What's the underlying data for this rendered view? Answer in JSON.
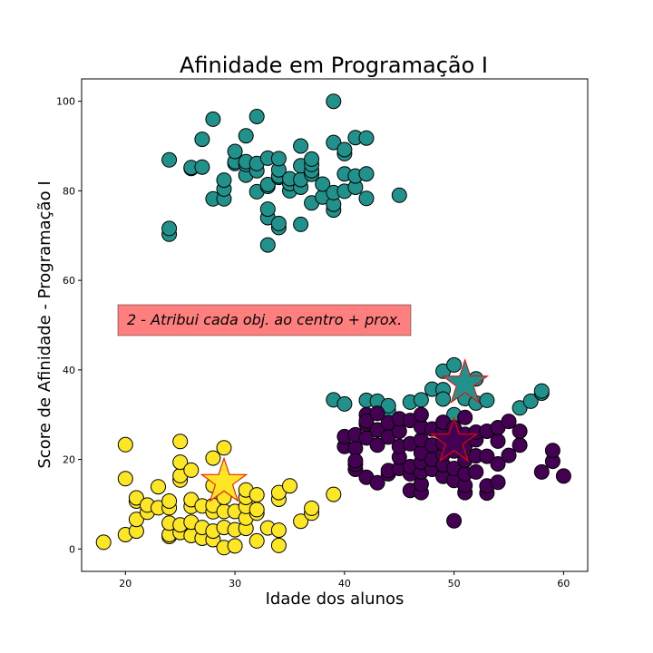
{
  "chart_data": {
    "type": "scatter",
    "title": "Afinidade em Programação I",
    "xlabel": "Idade dos alunos",
    "ylabel": "Score de Afinidade - Programação I",
    "xlim": [
      16,
      62.2
    ],
    "ylim": [
      -5,
      105
    ],
    "xticks": [
      20,
      30,
      40,
      50,
      60
    ],
    "yticks": [
      0,
      20,
      40,
      60,
      80,
      100
    ],
    "grid": false,
    "annotation": {
      "text": "2 - Atribui cada obj. ao centro + prox.",
      "background": "#ff7f7f",
      "x": 19.3,
      "y": 51
    },
    "colors": {
      "cluster_yellow": "#fde725",
      "cluster_teal": "#21918c",
      "cluster_purple": "#440154",
      "centroid_edge": "#ff0000",
      "point_edge": "#000000"
    },
    "series": [
      {
        "color": "#fde725",
        "points": [
          [
            18,
            1.5
          ],
          [
            20,
            3.2
          ],
          [
            20,
            15.7
          ],
          [
            20,
            23.3
          ],
          [
            21,
            4
          ],
          [
            21,
            6.6
          ],
          [
            21,
            10.7
          ],
          [
            21,
            11.4
          ],
          [
            22,
            8.2
          ],
          [
            22,
            9.8
          ],
          [
            23,
            9.2
          ],
          [
            23,
            13.9
          ],
          [
            24,
            2.8
          ],
          [
            24,
            3.2
          ],
          [
            24,
            5.8
          ],
          [
            24,
            9.2
          ],
          [
            24,
            10.7
          ],
          [
            25,
            3.7
          ],
          [
            25,
            5.4
          ],
          [
            25,
            15.4
          ],
          [
            25,
            16.4
          ],
          [
            25,
            19.4
          ],
          [
            25,
            24
          ],
          [
            26,
            3
          ],
          [
            26,
            6
          ],
          [
            26,
            9.5
          ],
          [
            26,
            11
          ],
          [
            26,
            17.6
          ],
          [
            27,
            2.4
          ],
          [
            27,
            4.8
          ],
          [
            27,
            9.6
          ],
          [
            28,
            2.1
          ],
          [
            28,
            4
          ],
          [
            28,
            8.3
          ],
          [
            28,
            9.7
          ],
          [
            28,
            14.2
          ],
          [
            28,
            20.3
          ],
          [
            29,
            0.3
          ],
          [
            29,
            4.8
          ],
          [
            29,
            8.4
          ],
          [
            29,
            11.5
          ],
          [
            29,
            22.6
          ],
          [
            30,
            0.7
          ],
          [
            30,
            4.3
          ],
          [
            30,
            8.4
          ],
          [
            31,
            4.6
          ],
          [
            31,
            6.9
          ],
          [
            31,
            9.5
          ],
          [
            31,
            11.5
          ],
          [
            31,
            13.2
          ],
          [
            32,
            1.8
          ],
          [
            32,
            8
          ],
          [
            32,
            8.8
          ],
          [
            32,
            12.1
          ],
          [
            33,
            4.7
          ],
          [
            34,
            0.8
          ],
          [
            34,
            4.2
          ],
          [
            34,
            11.1
          ],
          [
            34,
            12.6
          ],
          [
            35,
            14.1
          ],
          [
            36,
            6.2
          ],
          [
            37,
            8
          ],
          [
            37,
            9.1
          ],
          [
            39,
            12.2
          ]
        ]
      },
      {
        "color": "#21918c",
        "points": [
          [
            24,
            70.3
          ],
          [
            24,
            71.6
          ],
          [
            24,
            86.9
          ],
          [
            26,
            85
          ],
          [
            26,
            85.2
          ],
          [
            27,
            85.3
          ],
          [
            27,
            91.5
          ],
          [
            28,
            78.2
          ],
          [
            28,
            96
          ],
          [
            29,
            78.2
          ],
          [
            29,
            80.4
          ],
          [
            29,
            82.4
          ],
          [
            30,
            86.1
          ],
          [
            30,
            86.5
          ],
          [
            30,
            88.8
          ],
          [
            31,
            83.5
          ],
          [
            31,
            85.9
          ],
          [
            31,
            86.5
          ],
          [
            31,
            92.3
          ],
          [
            32,
            79.8
          ],
          [
            32,
            84.5
          ],
          [
            32,
            86.1
          ],
          [
            32,
            96.6
          ],
          [
            33,
            67.9
          ],
          [
            33,
            74
          ],
          [
            33,
            75.9
          ],
          [
            33,
            81
          ],
          [
            33,
            81.4
          ],
          [
            33,
            87.3
          ],
          [
            34,
            71.8
          ],
          [
            34,
            72.7
          ],
          [
            34,
            83
          ],
          [
            34,
            83.3
          ],
          [
            34,
            84.7
          ],
          [
            34,
            87.2
          ],
          [
            35,
            80
          ],
          [
            35,
            81.6
          ],
          [
            35,
            82.7
          ],
          [
            36,
            72.5
          ],
          [
            36,
            80.8
          ],
          [
            36,
            82.5
          ],
          [
            36,
            85.6
          ],
          [
            36,
            90
          ],
          [
            37,
            77.3
          ],
          [
            37,
            83.7
          ],
          [
            37,
            84.5
          ],
          [
            37,
            85.9
          ],
          [
            37,
            87.1
          ],
          [
            38,
            78.6
          ],
          [
            38,
            81.5
          ],
          [
            39,
            75.7
          ],
          [
            39,
            77
          ],
          [
            39,
            79.6
          ],
          [
            39,
            90.8
          ],
          [
            39,
            100
          ],
          [
            40,
            79.9
          ],
          [
            40,
            83.8
          ],
          [
            40,
            88.3
          ],
          [
            40,
            89.2
          ],
          [
            41,
            80.8
          ],
          [
            41,
            83.3
          ],
          [
            41,
            91.9
          ],
          [
            42,
            78.3
          ],
          [
            42,
            83.8
          ],
          [
            42,
            91.8
          ],
          [
            45,
            79
          ],
          [
            39,
            33.3
          ],
          [
            40,
            32.4
          ],
          [
            42,
            33.2
          ],
          [
            43,
            33
          ],
          [
            44,
            30.9
          ],
          [
            44,
            32
          ],
          [
            46,
            32.8
          ],
          [
            47,
            33.3
          ],
          [
            48,
            35.7
          ],
          [
            49,
            35.6
          ],
          [
            49,
            39.7
          ],
          [
            49,
            33.5
          ],
          [
            50,
            41.1
          ],
          [
            50,
            30
          ],
          [
            51,
            33.6
          ],
          [
            51,
            36.8
          ],
          [
            52,
            32.6
          ],
          [
            52,
            38
          ],
          [
            53,
            33.2
          ],
          [
            56,
            31.5
          ],
          [
            57,
            33
          ],
          [
            58,
            34.8
          ],
          [
            58,
            35.3
          ]
        ]
      },
      {
        "color": "#440154",
        "points": [
          [
            40,
            22.9
          ],
          [
            40,
            25.1
          ],
          [
            41,
            17.8
          ],
          [
            41,
            18.9
          ],
          [
            41,
            22.5
          ],
          [
            41,
            25.5
          ],
          [
            41,
            19.7
          ],
          [
            42,
            16
          ],
          [
            42,
            24.8
          ],
          [
            42,
            27.9
          ],
          [
            42,
            30
          ],
          [
            42,
            28.6
          ],
          [
            43,
            14.8
          ],
          [
            43,
            23.2
          ],
          [
            43,
            26.6
          ],
          [
            43,
            30.3
          ],
          [
            44,
            16.8
          ],
          [
            44,
            17.5
          ],
          [
            44,
            25
          ],
          [
            44,
            28.2
          ],
          [
            45,
            18
          ],
          [
            45,
            20.5
          ],
          [
            45,
            22.9
          ],
          [
            45,
            26.3
          ],
          [
            45,
            29.1
          ],
          [
            46,
            13.1
          ],
          [
            46,
            16.8
          ],
          [
            46,
            18.4
          ],
          [
            46,
            23.5
          ],
          [
            46,
            28.7
          ],
          [
            47,
            12.6
          ],
          [
            47,
            14.5
          ],
          [
            47,
            17.2
          ],
          [
            47,
            19.4
          ],
          [
            47,
            21.5
          ],
          [
            47,
            24.4
          ],
          [
            47,
            27.3
          ],
          [
            47,
            30
          ],
          [
            48,
            17.8
          ],
          [
            48,
            20
          ],
          [
            48,
            23.2
          ],
          [
            48,
            26.8
          ],
          [
            49,
            16.2
          ],
          [
            49,
            18.8
          ],
          [
            49,
            21.2
          ],
          [
            49,
            23.6
          ],
          [
            49,
            26.5
          ],
          [
            49,
            28.3
          ],
          [
            50,
            6.3
          ],
          [
            50,
            15.3
          ],
          [
            50,
            18
          ],
          [
            50,
            21.9
          ],
          [
            50,
            24.4
          ],
          [
            50,
            27.1
          ],
          [
            51,
            12.6
          ],
          [
            51,
            14.2
          ],
          [
            51,
            16.8
          ],
          [
            51,
            19.8
          ],
          [
            51,
            23
          ],
          [
            51,
            25.6
          ],
          [
            51,
            29.4
          ],
          [
            52,
            17.2
          ],
          [
            52,
            20.8
          ],
          [
            52,
            24.4
          ],
          [
            52,
            26.1
          ],
          [
            53,
            12.5
          ],
          [
            53,
            14.1
          ],
          [
            53,
            20.7
          ],
          [
            53,
            26.3
          ],
          [
            54,
            14.9
          ],
          [
            54,
            19
          ],
          [
            54,
            24.1
          ],
          [
            54,
            27.1
          ],
          [
            55,
            20.9
          ],
          [
            55,
            28.5
          ],
          [
            56,
            23.2
          ],
          [
            56,
            26.3
          ],
          [
            58,
            17.2
          ],
          [
            59,
            19.6
          ],
          [
            59,
            22
          ],
          [
            60,
            16.3
          ]
        ]
      }
    ],
    "centroids": [
      {
        "x": 29,
        "y": 15,
        "color": "#fde725"
      },
      {
        "x": 51,
        "y": 37,
        "color": "#21918c"
      },
      {
        "x": 50,
        "y": 24,
        "color": "#440154"
      }
    ]
  }
}
